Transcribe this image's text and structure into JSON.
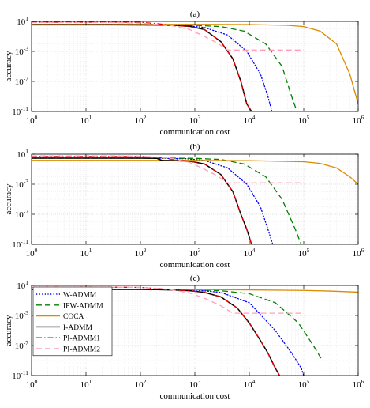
{
  "chart_data": [
    {
      "type": "line",
      "title": "(a)",
      "xlabel": "communication cost",
      "ylabel": "accuracy",
      "xscale": "log",
      "yscale": "log",
      "xlim": [
        1,
        1000000
      ],
      "ylim": [
        1e-11,
        10
      ],
      "xticks": [
        "10^0",
        "10^1",
        "10^2",
        "10^3",
        "10^4",
        "10^5",
        "10^6"
      ],
      "yticks": [
        "10^1",
        "10^-3",
        "10^-7",
        "10^-11"
      ],
      "grid": true,
      "series": [
        {
          "name": "W-ADMM",
          "color": "#0000ff",
          "style": "dotted",
          "x": [
            1,
            30,
            100,
            250,
            700,
            1500,
            4000,
            9000,
            16000,
            22000,
            26000
          ],
          "y": [
            4,
            4,
            3.8,
            3.5,
            2.8,
            1.5,
            0.15,
            0.001,
            1e-06,
            1e-09,
            1e-11
          ]
        },
        {
          "name": "IPW-ADMM",
          "color": "#008000",
          "style": "dashed",
          "x": [
            1,
            30,
            100,
            300,
            1000,
            3000,
            8000,
            20000,
            40000,
            60000,
            75000
          ],
          "y": [
            3.5,
            3.5,
            3.4,
            3.2,
            3,
            2,
            0.5,
            0.01,
            1e-05,
            1e-09,
            1e-11
          ]
        },
        {
          "name": "COCA",
          "color": "#d98c00",
          "style": "solid",
          "x": [
            1,
            10,
            100,
            1000,
            10000,
            50000,
            100000,
            200000,
            400000,
            700000,
            1000000
          ],
          "y": [
            4,
            4,
            4,
            4,
            3.8,
            3,
            2,
            0.5,
            0.01,
            1e-06,
            1e-10
          ]
        },
        {
          "name": "I-ADMM",
          "color": "#000000",
          "style": "solid",
          "x": [
            1,
            30,
            100,
            200,
            400,
            800,
            1500,
            3000,
            5000,
            7000,
            9000,
            11000
          ],
          "y": [
            3.5,
            3.5,
            3.4,
            3.3,
            3,
            2.2,
            0.8,
            0.02,
            0.0001,
            1e-07,
            1e-10,
            1e-11
          ]
        },
        {
          "name": "PI-ADMM1",
          "color": "#e00000",
          "style": "dashdot",
          "x": [
            1,
            30,
            100,
            200,
            400,
            800,
            1500,
            3000,
            5000,
            7000,
            9000,
            11000
          ],
          "y": [
            8,
            8,
            7.5,
            5,
            3,
            2,
            0.8,
            0.02,
            0.0001,
            1e-07,
            1e-10,
            1e-11
          ]
        },
        {
          "name": "PI-ADMM2",
          "color": "#ff9fb9",
          "style": "dashed",
          "x": [
            1,
            30,
            100,
            200,
            400,
            800,
            1500,
            2500,
            4000,
            100000
          ],
          "y": [
            7,
            7,
            6,
            4,
            2.5,
            0.8,
            0.1,
            0.015,
            0.0015,
            0.0015
          ]
        }
      ]
    },
    {
      "type": "line",
      "title": "(b)",
      "xlabel": "communication cost",
      "ylabel": "accuracy",
      "xscale": "log",
      "yscale": "log",
      "xlim": [
        1,
        1000000
      ],
      "ylim": [
        1e-11,
        10
      ],
      "xticks": [
        "10^0",
        "10^1",
        "10^2",
        "10^3",
        "10^4",
        "10^5",
        "10^6"
      ],
      "yticks": [
        "10^1",
        "10^-3",
        "10^-7",
        "10^-11"
      ],
      "grid": true,
      "series": [
        {
          "name": "W-ADMM",
          "color": "#0000ff",
          "style": "dotted",
          "x": [
            1,
            30,
            100,
            250,
            700,
            1500,
            4000,
            9000,
            16000,
            22000,
            27000
          ],
          "y": [
            3,
            3,
            3,
            2.8,
            2.5,
            1.5,
            0.15,
            0.001,
            1e-06,
            1e-09,
            1e-11
          ]
        },
        {
          "name": "IPW-ADMM",
          "color": "#008000",
          "style": "dashed",
          "x": [
            1,
            30,
            100,
            300,
            1000,
            3000,
            8000,
            20000,
            40000,
            70000,
            90000
          ],
          "y": [
            3,
            3,
            3,
            3,
            2.8,
            2,
            0.5,
            0.01,
            1e-05,
            1e-09,
            1e-11
          ]
        },
        {
          "name": "COCA",
          "color": "#d98c00",
          "style": "solid",
          "x": [
            1,
            10,
            100,
            1000,
            10000,
            100000,
            200000,
            400000,
            700000,
            1000000
          ],
          "y": [
            1.5,
            1.5,
            1.5,
            1.5,
            1.4,
            1,
            0.6,
            0.15,
            0.01,
            0.001
          ]
        },
        {
          "name": "I-ADMM",
          "color": "#000000",
          "style": "solid",
          "x": [
            1,
            30,
            100,
            200,
            250,
            400,
            800,
            1500,
            3000,
            5000,
            7000,
            9000,
            11000,
            12000
          ],
          "y": [
            3,
            3,
            3,
            2.8,
            1.5,
            1.4,
            1.2,
            0.5,
            0.02,
            0.0001,
            1e-07,
            1e-09,
            1e-11,
            1e-11
          ]
        },
        {
          "name": "PI-ADMM1",
          "color": "#e00000",
          "style": "dashdot",
          "x": [
            1,
            30,
            100,
            200,
            400,
            800,
            1500,
            3000,
            5000,
            7000,
            9000,
            11000
          ],
          "y": [
            5,
            5,
            5,
            4,
            2,
            1.2,
            0.5,
            0.02,
            0.0001,
            1e-07,
            1e-09,
            1e-11
          ]
        },
        {
          "name": "PI-ADMM2",
          "color": "#ff9fb9",
          "style": "dashed",
          "x": [
            1,
            30,
            100,
            200,
            400,
            800,
            1500,
            2500,
            4000,
            100000
          ],
          "y": [
            6,
            6,
            5.5,
            4,
            2.5,
            0.8,
            0.1,
            0.015,
            0.0015,
            0.0015
          ]
        }
      ]
    },
    {
      "type": "line",
      "title": "(c)",
      "xlabel": "communication cost",
      "ylabel": "accuracy",
      "xscale": "log",
      "yscale": "log",
      "xlim": [
        1,
        1000000
      ],
      "ylim": [
        1e-11,
        10
      ],
      "xticks": [
        "10^0",
        "10^1",
        "10^2",
        "10^3",
        "10^4",
        "10^5",
        "10^6"
      ],
      "yticks": [
        "10^1",
        "10^-3",
        "10^-7",
        "10^-11"
      ],
      "grid": true,
      "legend": "top-left",
      "series": [
        {
          "name": "W-ADMM",
          "color": "#0000ff",
          "style": "dotted",
          "x": [
            1,
            30,
            100,
            300,
            1000,
            3000,
            10000,
            30000,
            60000,
            90000,
            100000
          ],
          "y": [
            3,
            3,
            3,
            2.8,
            2.5,
            1.2,
            0.05,
            1e-05,
            1e-08,
            1e-10,
            1e-11
          ]
        },
        {
          "name": "IPW-ADMM",
          "color": "#008000",
          "style": "dashed",
          "x": [
            1,
            30,
            100,
            300,
            1000,
            3000,
            10000,
            30000,
            80000,
            150000,
            220000
          ],
          "y": [
            3,
            3,
            3,
            3,
            2.8,
            2,
            0.8,
            0.05,
            0.0001,
            1e-07,
            1e-09
          ]
        },
        {
          "name": "COCA",
          "color": "#d98c00",
          "style": "solid",
          "x": [
            1,
            10,
            100,
            1000,
            10000,
            100000,
            300000,
            1000000
          ],
          "y": [
            3,
            3,
            3,
            2.8,
            2.6,
            2.2,
            1.8,
            1.3
          ]
        },
        {
          "name": "I-ADMM",
          "color": "#000000",
          "style": "solid",
          "x": [
            1,
            30,
            100,
            200,
            400,
            800,
            1500,
            3000,
            6000,
            10000,
            15000,
            22000,
            30000,
            36000
          ],
          "y": [
            3,
            3,
            3,
            2.8,
            2.5,
            2,
            1.2,
            0.3,
            0.01,
            0.0001,
            1e-06,
            1e-08,
            1e-10,
            1e-11
          ]
        },
        {
          "name": "PI-ADMM1",
          "color": "#e00000",
          "style": "dashdot",
          "x": [
            1,
            30,
            100,
            200,
            400,
            800,
            1500,
            3000,
            6000,
            10000,
            15000,
            22000,
            30000,
            36000
          ],
          "y": [
            6,
            6,
            5.5,
            4,
            2.5,
            2,
            1.2,
            0.3,
            0.01,
            0.0001,
            1e-06,
            1e-08,
            1e-10,
            1e-11
          ]
        },
        {
          "name": "PI-ADMM2",
          "color": "#ff9fb9",
          "style": "dashed",
          "x": [
            1,
            30,
            100,
            200,
            400,
            800,
            1500,
            3000,
            5000,
            100000
          ],
          "y": [
            6,
            6,
            5.5,
            4,
            2.5,
            1,
            0.2,
            0.02,
            0.002,
            0.002
          ]
        }
      ]
    }
  ]
}
